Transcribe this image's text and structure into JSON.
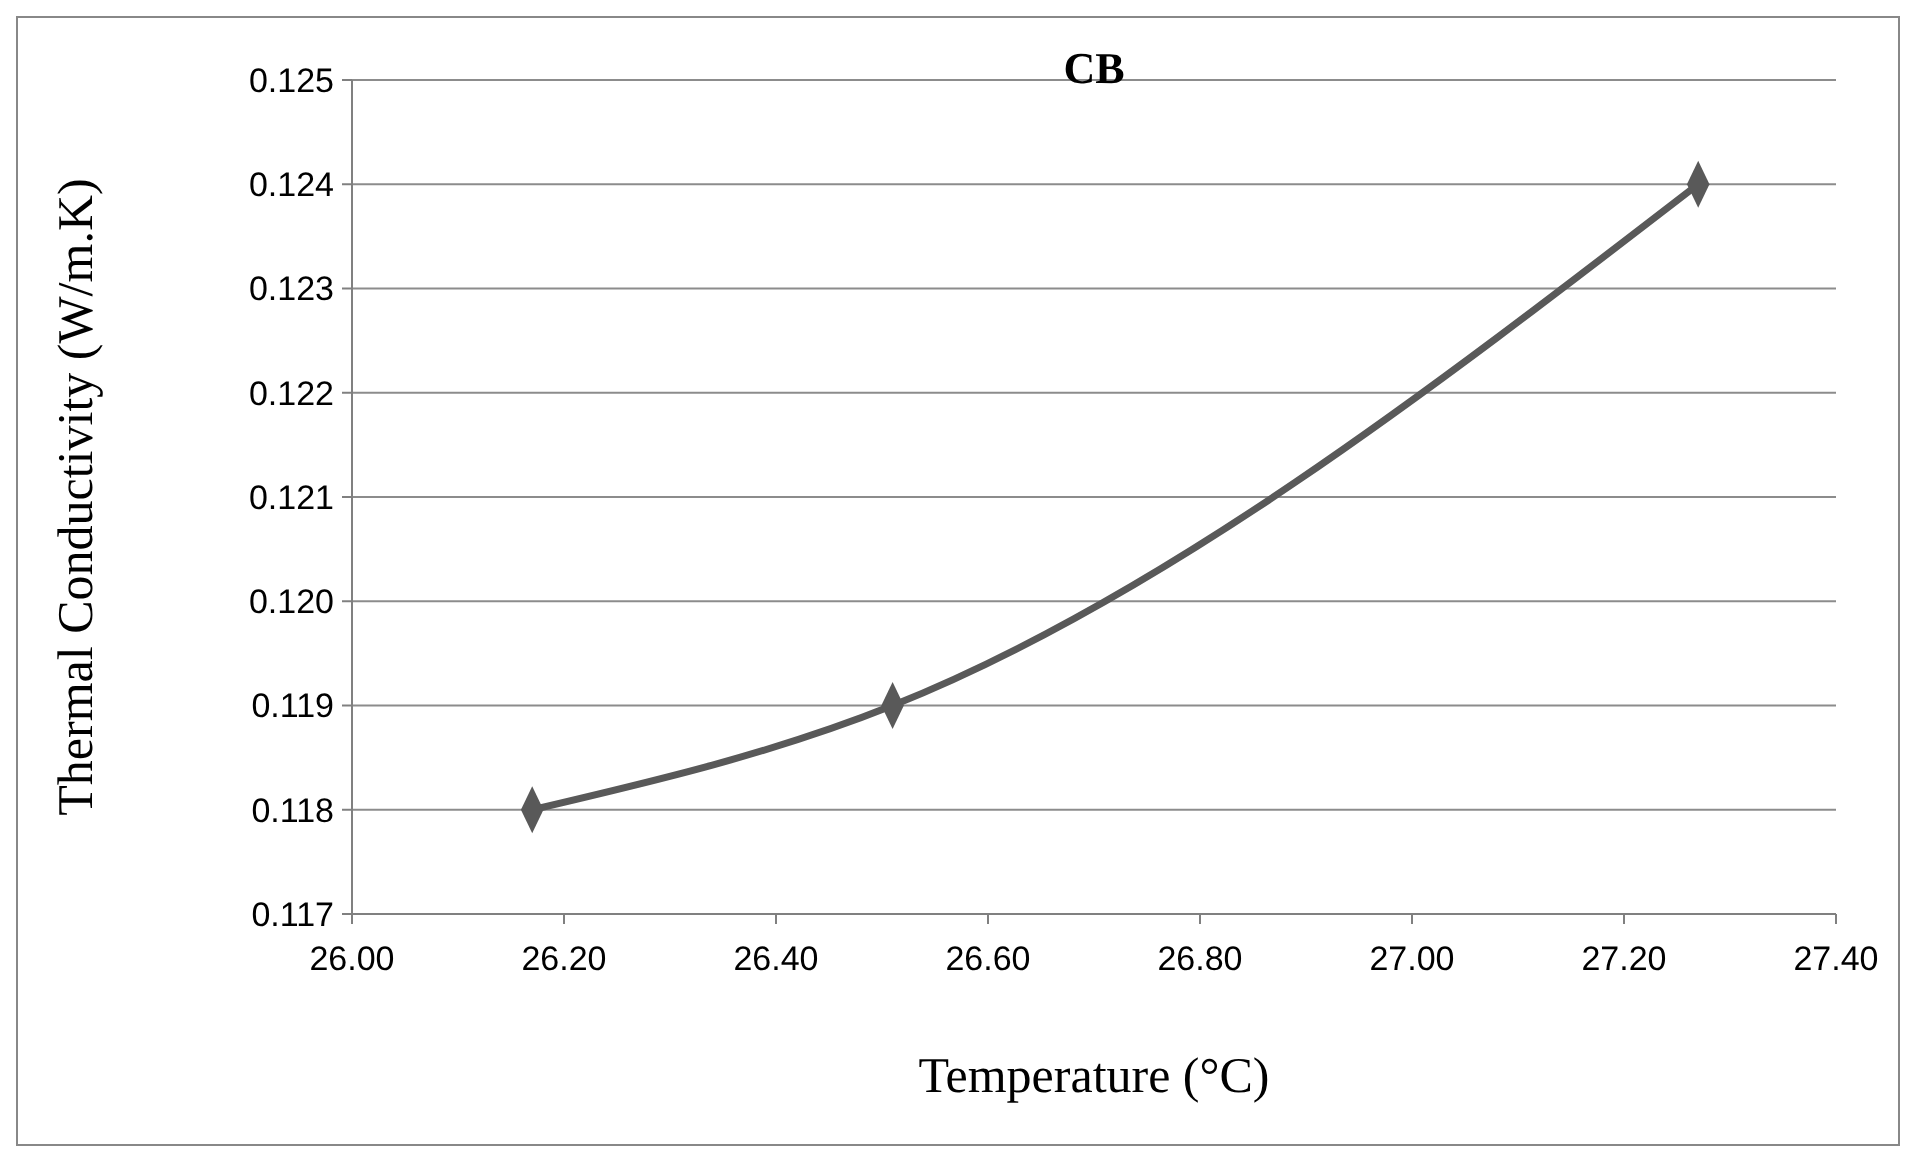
{
  "chart_data": {
    "type": "line",
    "title": "CB",
    "xlabel": "Temperature (°C)",
    "ylabel": "Thermal Conductivity (W/m.K)",
    "x": [
      26.17,
      26.51,
      27.27
    ],
    "series": [
      {
        "color": "#595959",
        "values": [
          0.118,
          0.119,
          0.124
        ]
      }
    ],
    "xlim": [
      26.0,
      27.4
    ],
    "xticks": [
      {
        "value": 26.0,
        "label": "26.00"
      },
      {
        "value": 26.2,
        "label": "26.20"
      },
      {
        "value": 26.4,
        "label": "26.40"
      },
      {
        "value": 26.6,
        "label": "26.60"
      },
      {
        "value": 26.8,
        "label": "26.80"
      },
      {
        "value": 27.0,
        "label": "27.00"
      },
      {
        "value": 27.2,
        "label": "27.20"
      },
      {
        "value": 27.4,
        "label": "27.40"
      }
    ],
    "ylim": [
      0.117,
      0.125
    ],
    "yticks": [
      0.117,
      0.118,
      0.119,
      {
        "value": 0.12,
        "label": "0.120"
      },
      0.121,
      0.122,
      0.123,
      0.124,
      0.125
    ],
    "grid": "y",
    "marker": "diamond",
    "line_style": "solid"
  }
}
